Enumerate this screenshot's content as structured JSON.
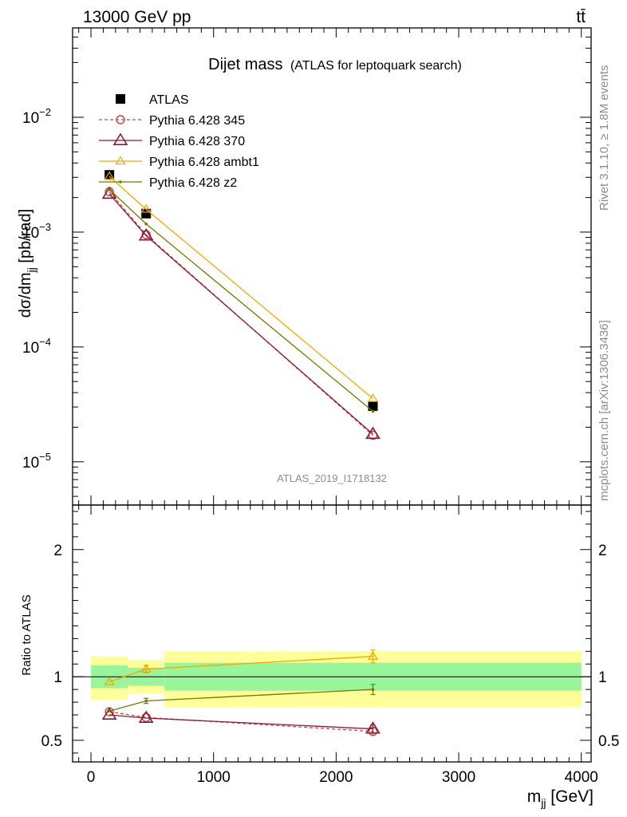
{
  "header": {
    "left": "13000 GeV pp",
    "right": "tt̄"
  },
  "side": {
    "rivet": "Rivet 3.1.10, ≥ 1.8M events",
    "mcplots": "mcplots.cern.ch [arXiv:1306.3436]"
  },
  "chart_data": [
    {
      "type": "scatter",
      "title": "Dijet mass",
      "subtitle": "(ATLAS for leptoquark search)",
      "xlabel_main": "m",
      "xlabel_sub": "jj",
      "xlabel_unit": " [GeV]",
      "ylabel_main": "dσ/dm",
      "ylabel_sub": "jj",
      "ylabel_unit": " [pb/rad]",
      "yscale": "log",
      "xlim": [
        -150,
        4080
      ],
      "ylim": [
        4.2e-06,
        0.06
      ],
      "watermark": "ATLAS_2019_I1718132",
      "y_tick_labels": [
        {
          "value": 1e-05,
          "base": "10",
          "exp": "−5"
        },
        {
          "value": 0.0001,
          "base": "10",
          "exp": "−4"
        },
        {
          "value": 0.001,
          "base": "10",
          "exp": "−3"
        },
        {
          "value": 0.01,
          "base": "10",
          "exp": "−2"
        }
      ],
      "x": [
        150,
        450,
        2300
      ],
      "series": [
        {
          "name": "ATLAS",
          "values": [
            0.00315,
            0.00145,
            3.05e-05
          ],
          "color": "#000000",
          "marker": "square"
        },
        {
          "name": "Pythia 6.428 345",
          "values": [
            0.00225,
            0.00095,
            1.7e-05
          ],
          "color": "#b8474f",
          "marker": "circle",
          "dash": true
        },
        {
          "name": "Pythia 6.428 370",
          "values": [
            0.00215,
            0.00093,
            1.74e-05
          ],
          "color": "#8b1a2e",
          "marker": "triangle"
        },
        {
          "name": "Pythia 6.428 ambt1",
          "values": [
            0.00305,
            0.00158,
            3.55e-05
          ],
          "color": "#f0a800",
          "marker": "triangle-small"
        },
        {
          "name": "Pythia 6.428 z2",
          "values": [
            0.00235,
            0.00118,
            2.75e-05
          ],
          "color": "#6f7a00",
          "marker": "dot"
        }
      ]
    },
    {
      "type": "line",
      "ylabel": "Ratio to ATLAS",
      "xlabel_main": "m",
      "xlabel_sub": "jj",
      "xlabel_unit": " [GeV]",
      "xlim": [
        -150,
        4080
      ],
      "ylim": [
        0.33,
        2.35
      ],
      "x_tick_labels": [
        "0",
        "1000",
        "2000",
        "3000",
        "4000"
      ],
      "y_tick_labels": [
        "0.5",
        "1",
        "2"
      ],
      "bands": [
        {
          "x0": 0,
          "x1": 300,
          "stat_lo": 0.91,
          "stat_hi": 1.09,
          "tot_lo": 0.82,
          "tot_hi": 1.16
        },
        {
          "x0": 300,
          "x1": 600,
          "stat_lo": 0.93,
          "stat_hi": 1.07,
          "tot_lo": 0.87,
          "tot_hi": 1.13
        },
        {
          "x0": 600,
          "x1": 4000,
          "stat_lo": 0.89,
          "stat_hi": 1.11,
          "tot_lo": 0.76,
          "tot_hi": 1.2
        }
      ],
      "x": [
        150,
        450,
        2300
      ],
      "series": [
        {
          "name": "Pythia 6.428 345",
          "values": [
            0.725,
            0.68,
            0.57
          ],
          "err": [
            0,
            0,
            0.03
          ],
          "color": "#b8474f",
          "marker": "circle",
          "dash": true
        },
        {
          "name": "Pythia 6.428 370",
          "values": [
            0.7,
            0.675,
            0.59
          ],
          "err": [
            0,
            0,
            0.03
          ],
          "color": "#8b1a2e",
          "marker": "triangle"
        },
        {
          "name": "Pythia 6.428 ambt1",
          "values": [
            0.96,
            1.06,
            1.16
          ],
          "err": [
            0,
            0.03,
            0.05
          ],
          "color": "#f0a800",
          "marker": "triangle-small"
        },
        {
          "name": "Pythia 6.428 z2",
          "values": [
            0.73,
            0.81,
            0.9
          ],
          "err": [
            0,
            0.02,
            0.04
          ],
          "color": "#6f7a00",
          "marker": "dot"
        }
      ]
    }
  ]
}
